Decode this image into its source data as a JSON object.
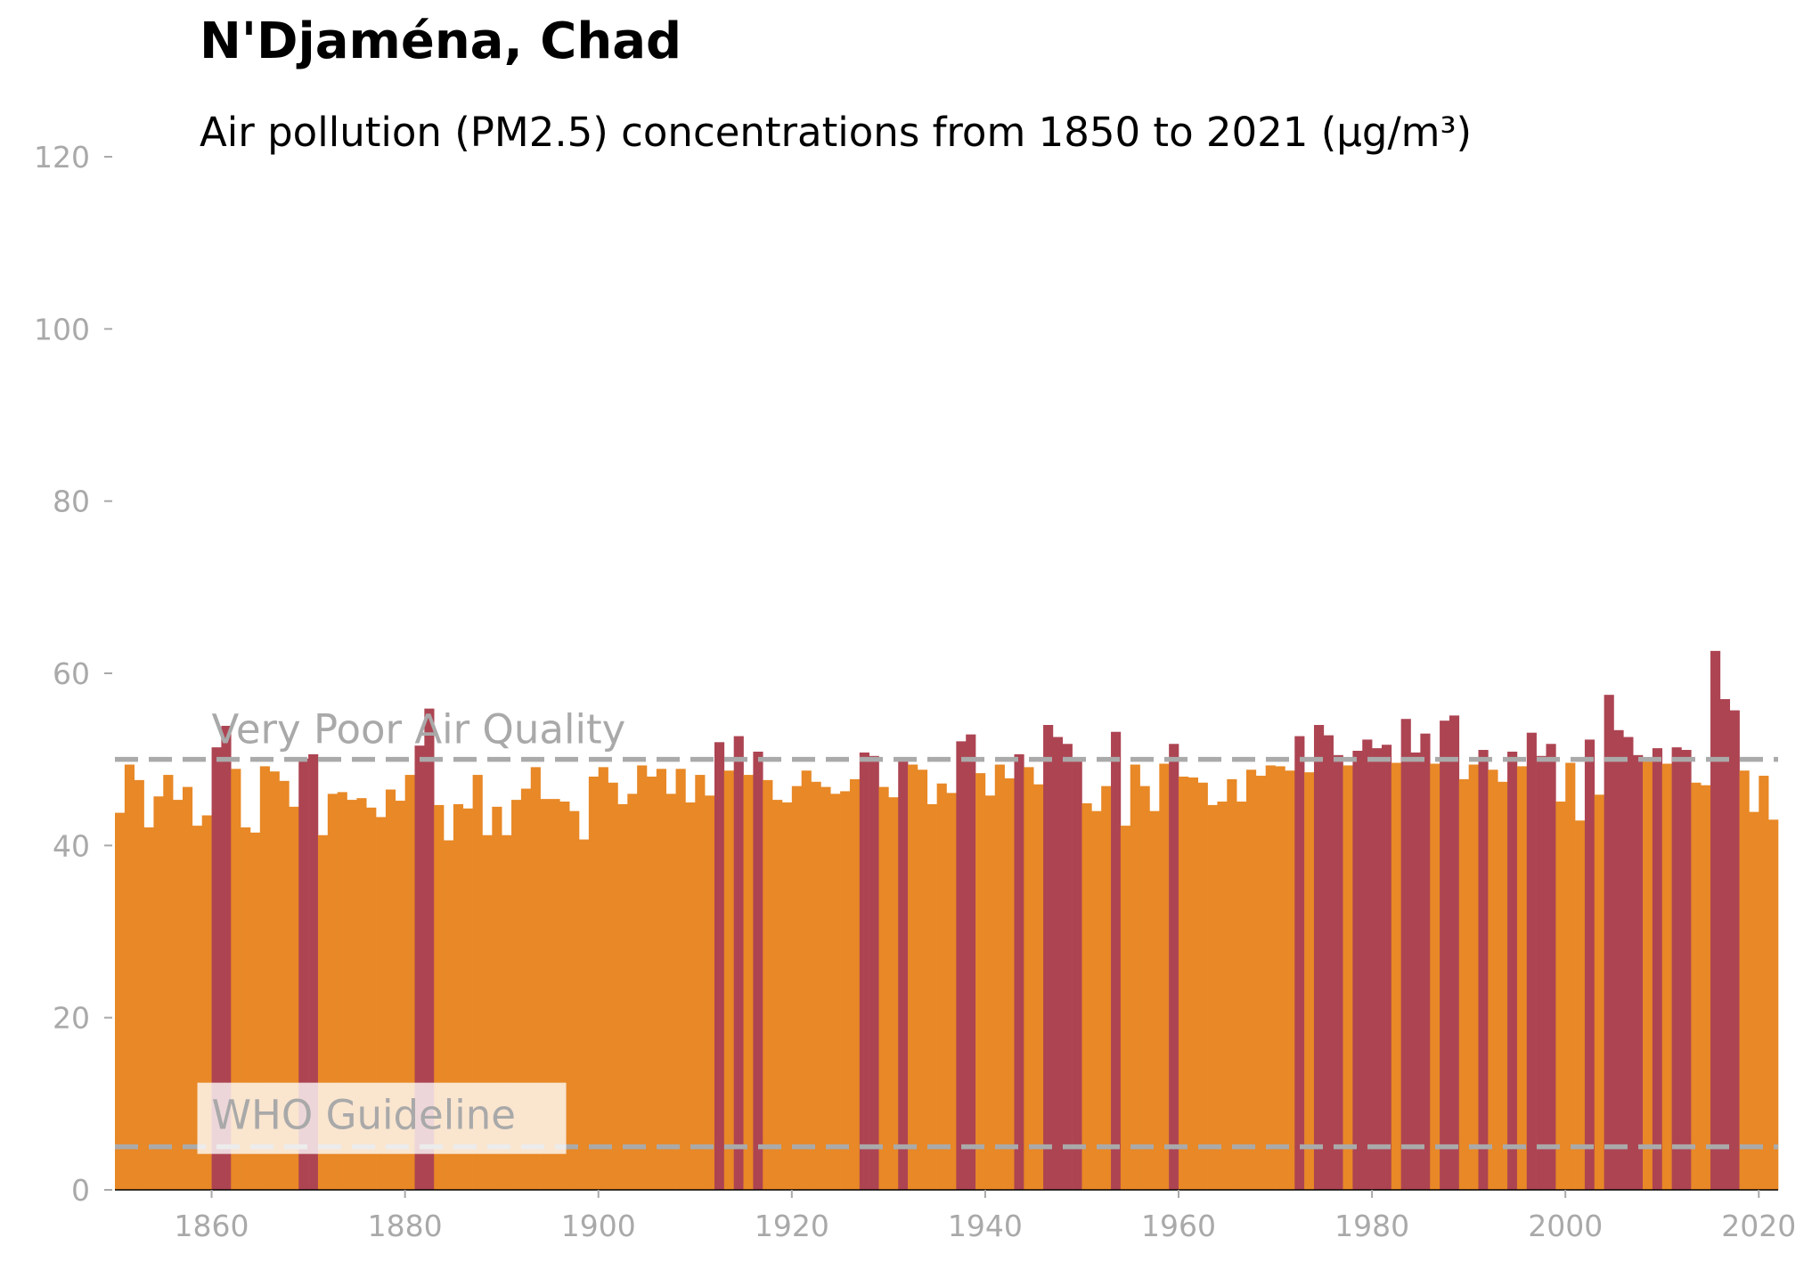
{
  "chart_data": {
    "type": "bar",
    "title": "N'Djaména, Chad",
    "subtitle": "Air pollution (PM2.5) concentrations from 1850 to 2021 (µg/m³)",
    "xlabel": "",
    "ylabel": "",
    "x_start": 1850,
    "x_end": 2021,
    "xlim": [
      1850,
      2022
    ],
    "ylim": [
      0,
      120
    ],
    "x_ticks": [
      1860,
      1880,
      1900,
      1920,
      1940,
      1960,
      1980,
      2000,
      2020
    ],
    "y_ticks": [
      0,
      20,
      40,
      60,
      80,
      100,
      120
    ],
    "threshold": 50,
    "colors": {
      "below": "#e88826",
      "above": "#ad4452"
    },
    "reference_lines": [
      {
        "label": "Very Poor Air Quality",
        "value": 50
      },
      {
        "label": "WHO Guideline",
        "value": 5
      }
    ],
    "grid": false,
    "values": [
      43.8,
      49.4,
      47.6,
      42.1,
      45.7,
      48.2,
      45.3,
      46.8,
      42.3,
      43.5,
      51.4,
      53.9,
      48.9,
      42.1,
      41.5,
      49.2,
      48.6,
      47.5,
      44.5,
      50.1,
      50.6,
      41.2,
      46.0,
      46.2,
      45.3,
      45.5,
      44.4,
      43.3,
      46.5,
      45.2,
      48.2,
      51.6,
      55.9,
      44.7,
      40.6,
      44.8,
      44.3,
      48.2,
      41.2,
      44.5,
      41.2,
      45.3,
      46.6,
      49.1,
      45.4,
      45.4,
      45.1,
      44.0,
      40.7,
      48.0,
      49.1,
      47.3,
      44.8,
      46.0,
      49.3,
      48.0,
      48.9,
      46.0,
      48.9,
      45.0,
      48.2,
      45.8,
      52.0,
      48.7,
      52.7,
      48.2,
      50.9,
      47.6,
      45.3,
      45.0,
      46.9,
      48.7,
      47.4,
      46.8,
      46.0,
      46.3,
      47.7,
      50.8,
      50.4,
      46.8,
      45.6,
      50.2,
      49.4,
      48.8,
      44.8,
      47.2,
      46.1,
      52.1,
      52.9,
      48.4,
      45.8,
      49.4,
      47.8,
      50.6,
      49.1,
      47.1,
      54.0,
      52.6,
      51.8,
      50.1,
      44.9,
      44.0,
      46.9,
      53.2,
      42.3,
      49.4,
      46.9,
      44.0,
      49.5,
      51.8,
      48.0,
      47.9,
      47.3,
      44.7,
      45.1,
      47.7,
      45.1,
      48.8,
      48.1,
      49.3,
      49.2,
      48.7,
      52.7,
      48.5,
      54.0,
      52.8,
      50.5,
      49.3,
      51.0,
      52.3,
      51.3,
      51.7,
      49.6,
      54.7,
      50.8,
      53.0,
      49.5,
      54.5,
      55.1,
      47.7,
      49.4,
      51.1,
      48.8,
      47.4,
      50.9,
      49.2,
      53.1,
      50.4,
      51.8,
      45.1,
      49.6,
      42.9,
      52.3,
      45.9,
      57.5,
      53.4,
      52.6,
      50.5,
      49.9,
      51.3,
      49.5,
      51.4,
      51.1,
      47.3,
      47.0,
      62.6,
      57.0,
      55.7,
      48.7,
      43.9,
      48.1,
      43.0
    ]
  }
}
